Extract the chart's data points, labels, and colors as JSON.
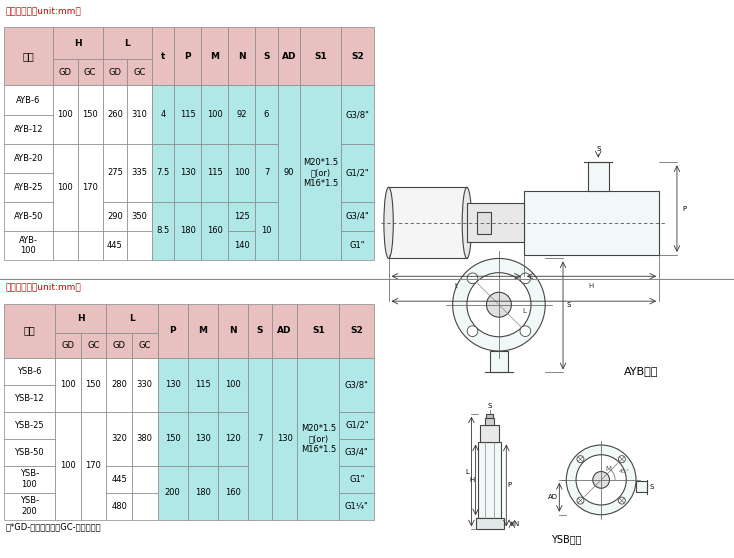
{
  "unit_text": "单位：毫米（unit:mm）",
  "note_text": "注*GD-短泵体结构；GC-长泵体结构",
  "header_bg": "#e8c0c0",
  "cell_bg_cyan": "#b0e8e8",
  "cell_bg_white": "#ffffff",
  "title_color": "#cc0000",
  "border_color": "#888888",
  "ayb_series_label": "AYB系列",
  "ysb_series_label": "YSB系列",
  "type_label": "型号",
  "ayb_col_headers": [
    "H",
    "L",
    "t",
    "P",
    "M",
    "N",
    "S",
    "AD",
    "S1",
    "S2"
  ],
  "ysb_col_headers": [
    "H",
    "L",
    "P",
    "M",
    "N",
    "S",
    "AD",
    "S1",
    "S2"
  ],
  "sub_headers": [
    "GD",
    "GC",
    "GD",
    "GC"
  ],
  "ayb_merges_H_GD": [
    [
      0,
      1,
      "100"
    ],
    [
      2,
      4,
      "100"
    ]
  ],
  "ayb_merges_H_GC": [
    [
      0,
      1,
      "150"
    ],
    [
      2,
      4,
      "170"
    ]
  ],
  "ayb_merges_L_GD": [
    [
      0,
      1,
      "260"
    ],
    [
      2,
      3,
      "275"
    ],
    [
      4,
      4,
      "290"
    ],
    [
      5,
      5,
      "445"
    ]
  ],
  "ayb_merges_L_GC": [
    [
      0,
      1,
      "310"
    ],
    [
      2,
      3,
      "335"
    ],
    [
      4,
      4,
      "350"
    ]
  ],
  "ayb_merges_t": [
    [
      0,
      1,
      "4"
    ],
    [
      2,
      3,
      "7.5"
    ],
    [
      4,
      5,
      "8.5"
    ]
  ],
  "ayb_merges_P": [
    [
      0,
      1,
      "115"
    ],
    [
      2,
      3,
      "130"
    ],
    [
      4,
      5,
      "180"
    ]
  ],
  "ayb_merges_M": [
    [
      0,
      1,
      "100"
    ],
    [
      2,
      3,
      "115"
    ],
    [
      4,
      5,
      "160"
    ]
  ],
  "ayb_merges_N": [
    [
      0,
      1,
      "92"
    ],
    [
      2,
      3,
      "100"
    ],
    [
      4,
      4,
      "125"
    ],
    [
      5,
      5,
      "140"
    ]
  ],
  "ayb_merges_S": [
    [
      0,
      1,
      "6"
    ],
    [
      2,
      3,
      "7"
    ],
    [
      4,
      5,
      "10"
    ]
  ],
  "ayb_merges_AD": [
    [
      0,
      5,
      "90"
    ]
  ],
  "ayb_merges_S1": [
    [
      0,
      5,
      "M20*1.5\n或(or)\nM16*1.5"
    ]
  ],
  "ayb_merges_S2": [
    [
      0,
      1,
      "G3/8\""
    ],
    [
      2,
      3,
      "G1/2\""
    ],
    [
      4,
      4,
      "G3/4\""
    ],
    [
      5,
      5,
      "G1\""
    ]
  ],
  "ayb_models": [
    "AYB-6",
    "AYB-12",
    "AYB-20",
    "AYB-25",
    "AYB-50",
    "AYB-\n100"
  ],
  "ysb_merges_H_GD": [
    [
      0,
      1,
      "100"
    ],
    [
      2,
      5,
      "100"
    ]
  ],
  "ysb_merges_H_GC": [
    [
      0,
      1,
      "150"
    ],
    [
      2,
      5,
      "170"
    ]
  ],
  "ysb_merges_L_GD": [
    [
      0,
      1,
      "280"
    ],
    [
      2,
      3,
      "320"
    ],
    [
      4,
      4,
      "445"
    ],
    [
      5,
      5,
      "480"
    ]
  ],
  "ysb_merges_L_GC": [
    [
      0,
      1,
      "330"
    ],
    [
      2,
      3,
      "380"
    ]
  ],
  "ysb_merges_P": [
    [
      0,
      1,
      "130"
    ],
    [
      2,
      3,
      "150"
    ],
    [
      4,
      5,
      "200"
    ]
  ],
  "ysb_merges_M": [
    [
      0,
      1,
      "115"
    ],
    [
      2,
      3,
      "130"
    ],
    [
      4,
      5,
      "180"
    ]
  ],
  "ysb_merges_N": [
    [
      0,
      1,
      "100"
    ],
    [
      2,
      3,
      "120"
    ],
    [
      4,
      5,
      "160"
    ]
  ],
  "ysb_merges_S": [
    [
      0,
      5,
      "7"
    ]
  ],
  "ysb_merges_AD": [
    [
      0,
      5,
      "130"
    ]
  ],
  "ysb_merges_S1": [
    [
      0,
      5,
      "M20*1.5\n或(or)\nM16*1.5"
    ]
  ],
  "ysb_merges_S2": [
    [
      0,
      1,
      "G3/8\""
    ],
    [
      2,
      2,
      "G1/2\""
    ],
    [
      3,
      3,
      "G3/4\""
    ],
    [
      4,
      4,
      "G1\""
    ],
    [
      5,
      5,
      "G1¹⁄₄\""
    ]
  ],
  "ysb_models": [
    "YSB-6",
    "YSB-12",
    "YSB-25",
    "YSB-50",
    "YSB-\n100",
    "YSB-\n200"
  ]
}
